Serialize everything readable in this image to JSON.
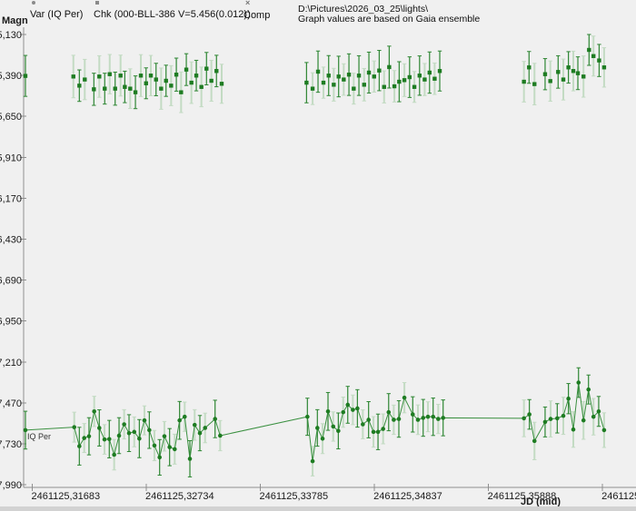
{
  "window": {
    "background": "#f0f0f0"
  },
  "colors": {
    "background": "#f0f0f0",
    "axis_gray": "#8f8f8f",
    "text": "#1a1a1a",
    "legend_marker_gray": "#8a8a8a",
    "marker_green": "#1e7c22",
    "errorbar_dark": "#2e8633",
    "errorbar_light": "#c3dbc3",
    "line_green": "#3a9040"
  },
  "legend": {
    "items": [
      {
        "marker": "dot",
        "label": "Var (IQ Per)"
      },
      {
        "marker": "square",
        "label": "Chk (000-BLL-386 V=5.456(0.012))"
      },
      {
        "marker": "x",
        "label": "Comp"
      }
    ]
  },
  "info": {
    "line1": "D:\\Pictures\\2026_03_25\\lights\\",
    "line2": "Graph values are based on Gaia ensemble"
  },
  "labels": {
    "y_axis": "Magn",
    "x_axis": "JD (mid)",
    "var_annotation": "IQ Per"
  },
  "chart_data": {
    "type": "scatter",
    "title": "",
    "xlabel": "JD (mid)",
    "ylabel": "Magn",
    "y_inverted": true,
    "grid": false,
    "legend_position": "top",
    "jd_base": 2461125,
    "x_ticks": [
      {
        "value_offset": 0.31683,
        "label": "2461125,31683"
      },
      {
        "value_offset": 0.32734,
        "label": "2461125,32734"
      },
      {
        "value_offset": 0.33785,
        "label": "2461125,33785"
      },
      {
        "value_offset": 0.34837,
        "label": "2461125,34837"
      },
      {
        "value_offset": 0.35888,
        "label": "2461125,35888"
      },
      {
        "value_offset": 0.36939,
        "label": "2461125,"
      }
    ],
    "y_ticks": [
      {
        "value": 5.13,
        "label": "5,130"
      },
      {
        "value": 5.39,
        "label": "5,390"
      },
      {
        "value": 5.65,
        "label": "5,650"
      },
      {
        "value": 5.91,
        "label": "5,910"
      },
      {
        "value": 6.17,
        "label": "6,170"
      },
      {
        "value": 6.43,
        "label": "6,430"
      },
      {
        "value": 6.69,
        "label": "6,690"
      },
      {
        "value": 6.95,
        "label": "6,950"
      },
      {
        "value": 7.21,
        "label": "7,210"
      },
      {
        "value": 7.47,
        "label": "7,470"
      },
      {
        "value": 7.73,
        "label": "7,730"
      },
      {
        "value": 7.99,
        "label": "7,990"
      }
    ],
    "series": [
      {
        "name": "Chk (000-BLL-386)",
        "marker": "square",
        "connected": false,
        "points": [
          [
            0.3162,
            5.393,
            0.13
          ],
          [
            0.32062,
            5.397,
            0.135
          ],
          [
            0.32117,
            5.455,
            0.1
          ],
          [
            0.32167,
            5.416,
            0.128
          ],
          [
            0.32251,
            5.478,
            0.102
          ],
          [
            0.32301,
            5.397,
            0.132
          ],
          [
            0.32351,
            5.474,
            0.098
          ],
          [
            0.32397,
            5.382,
            0.125
          ],
          [
            0.32447,
            5.474,
            0.105
          ],
          [
            0.32497,
            5.391,
            0.13
          ],
          [
            0.32536,
            5.463,
            0.1
          ],
          [
            0.32586,
            5.474,
            0.126
          ],
          [
            0.32634,
            5.497,
            0.104
          ],
          [
            0.32684,
            5.391,
            0.133
          ],
          [
            0.32732,
            5.44,
            0.098
          ],
          [
            0.32776,
            5.391,
            0.128
          ],
          [
            0.32824,
            5.416,
            0.103
          ],
          [
            0.32871,
            5.474,
            0.131
          ],
          [
            0.32916,
            5.424,
            0.099
          ],
          [
            0.32963,
            5.455,
            0.127
          ],
          [
            0.33011,
            5.385,
            0.105
          ],
          [
            0.33055,
            5.497,
            0.129
          ],
          [
            0.33103,
            5.353,
            0.101
          ],
          [
            0.3315,
            5.436,
            0.132
          ],
          [
            0.33195,
            5.391,
            0.097
          ],
          [
            0.33242,
            5.463,
            0.126
          ],
          [
            0.33289,
            5.347,
            0.103
          ],
          [
            0.33334,
            5.424,
            0.13
          ],
          [
            0.33381,
            5.362,
            0.1
          ],
          [
            0.33429,
            5.443,
            0.124
          ],
          [
            0.34211,
            5.436,
            0.128
          ],
          [
            0.34267,
            5.474,
            0.101
          ],
          [
            0.34317,
            5.366,
            0.131
          ],
          [
            0.34367,
            5.436,
            0.099
          ],
          [
            0.34415,
            5.391,
            0.127
          ],
          [
            0.34462,
            5.449,
            0.104
          ],
          [
            0.34507,
            5.397,
            0.129
          ],
          [
            0.34554,
            5.416,
            0.1
          ],
          [
            0.34602,
            5.385,
            0.132
          ],
          [
            0.34646,
            5.474,
            0.098
          ],
          [
            0.34694,
            5.391,
            0.126
          ],
          [
            0.34742,
            5.449,
            0.103
          ],
          [
            0.34786,
            5.372,
            0.13
          ],
          [
            0.34834,
            5.397,
            0.099
          ],
          [
            0.34881,
            5.359,
            0.128
          ],
          [
            0.34926,
            5.463,
            0.102
          ],
          [
            0.34973,
            5.337,
            0.133
          ],
          [
            0.35021,
            5.459,
            0.1
          ],
          [
            0.35065,
            5.43,
            0.127
          ],
          [
            0.35113,
            5.42,
            0.104
          ],
          [
            0.35161,
            5.401,
            0.129
          ],
          [
            0.35205,
            5.463,
            0.098
          ],
          [
            0.35253,
            5.391,
            0.125
          ],
          [
            0.353,
            5.416,
            0.102
          ],
          [
            0.35345,
            5.372,
            0.131
          ],
          [
            0.35392,
            5.411,
            0.1
          ],
          [
            0.35439,
            5.362,
            0.127
          ],
          [
            0.36215,
            5.43,
            0.129
          ],
          [
            0.36262,
            5.339,
            0.101
          ],
          [
            0.36312,
            5.445,
            0.132
          ],
          [
            0.3641,
            5.382,
            0.099
          ],
          [
            0.36458,
            5.426,
            0.128
          ],
          [
            0.3653,
            5.368,
            0.103
          ],
          [
            0.36578,
            5.416,
            0.13
          ],
          [
            0.36625,
            5.339,
            0.1
          ],
          [
            0.3667,
            5.362,
            0.126
          ],
          [
            0.36712,
            5.376,
            0.104
          ],
          [
            0.36764,
            5.397,
            0.131
          ],
          [
            0.36815,
            5.228,
            0.098
          ],
          [
            0.36856,
            5.267,
            0.127
          ],
          [
            0.36908,
            5.295,
            0.102
          ],
          [
            0.36954,
            5.339,
            0.125
          ]
        ]
      },
      {
        "name": "Var (IQ Per)",
        "marker": "circle",
        "connected": true,
        "points": [
          [
            0.3162,
            7.643,
            0.12
          ],
          [
            0.3207,
            7.624,
            0.095
          ],
          [
            0.32117,
            7.745,
            0.12
          ],
          [
            0.32162,
            7.693,
            0.092
          ],
          [
            0.32206,
            7.682,
            0.118
          ],
          [
            0.32254,
            7.524,
            0.096
          ],
          [
            0.32301,
            7.629,
            0.115
          ],
          [
            0.32349,
            7.702,
            0.094
          ],
          [
            0.32393,
            7.7,
            0.119
          ],
          [
            0.32438,
            7.799,
            0.097
          ],
          [
            0.32483,
            7.678,
            0.114
          ],
          [
            0.3253,
            7.606,
            0.093
          ],
          [
            0.32575,
            7.662,
            0.117
          ],
          [
            0.32623,
            7.654,
            0.095
          ],
          [
            0.3267,
            7.697,
            0.121
          ],
          [
            0.32717,
            7.581,
            0.092
          ],
          [
            0.32762,
            7.643,
            0.116
          ],
          [
            0.32809,
            7.741,
            0.096
          ],
          [
            0.32857,
            7.816,
            0.113
          ],
          [
            0.32901,
            7.682,
            0.094
          ],
          [
            0.32949,
            7.751,
            0.118
          ],
          [
            0.32996,
            7.764,
            0.095
          ],
          [
            0.33041,
            7.581,
            0.12
          ],
          [
            0.33088,
            7.558,
            0.093
          ],
          [
            0.33136,
            7.825,
            0.115
          ],
          [
            0.3318,
            7.61,
            0.097
          ],
          [
            0.33228,
            7.662,
            0.112
          ],
          [
            0.33276,
            7.629,
            0.094
          ],
          [
            0.33368,
            7.572,
            0.119
          ],
          [
            0.33415,
            7.678,
            0.096
          ],
          [
            0.34219,
            7.558,
            0.118
          ],
          [
            0.34267,
            7.84,
            0.094
          ],
          [
            0.34311,
            7.629,
            0.116
          ],
          [
            0.34359,
            7.697,
            0.095
          ],
          [
            0.34409,
            7.524,
            0.12
          ],
          [
            0.34457,
            7.62,
            0.093
          ],
          [
            0.34504,
            7.648,
            0.114
          ],
          [
            0.34549,
            7.529,
            0.096
          ],
          [
            0.34591,
            7.482,
            0.117
          ],
          [
            0.34638,
            7.514,
            0.094
          ],
          [
            0.3468,
            7.505,
            0.119
          ],
          [
            0.3473,
            7.606,
            0.092
          ],
          [
            0.34783,
            7.577,
            0.115
          ],
          [
            0.34828,
            7.654,
            0.097
          ],
          [
            0.3487,
            7.654,
            0.113
          ],
          [
            0.34917,
            7.635,
            0.095
          ],
          [
            0.34968,
            7.529,
            0.118
          ],
          [
            0.35015,
            7.577,
            0.093
          ],
          [
            0.35062,
            7.572,
            0.116
          ],
          [
            0.35113,
            7.437,
            0.096
          ],
          [
            0.3519,
            7.543,
            0.112
          ],
          [
            0.35238,
            7.577,
            0.094
          ],
          [
            0.35286,
            7.565,
            0.117
          ],
          [
            0.3533,
            7.558,
            0.095
          ],
          [
            0.35378,
            7.558,
            0.119
          ],
          [
            0.35425,
            7.572,
            0.093
          ],
          [
            0.3547,
            7.565,
            0.114
          ],
          [
            0.36215,
            7.568,
            0.117
          ],
          [
            0.36265,
            7.543,
            0.094
          ],
          [
            0.36312,
            7.712,
            0.119
          ],
          [
            0.3641,
            7.591,
            0.095
          ],
          [
            0.36461,
            7.572,
            0.115
          ],
          [
            0.36522,
            7.568,
            0.093
          ],
          [
            0.36578,
            7.552,
            0.118
          ],
          [
            0.36625,
            7.443,
            0.096
          ],
          [
            0.3667,
            7.639,
            0.113
          ],
          [
            0.36718,
            7.341,
            0.094
          ],
          [
            0.36764,
            7.581,
            0.12
          ],
          [
            0.3681,
            7.385,
            0.092
          ],
          [
            0.36856,
            7.558,
            0.116
          ],
          [
            0.36904,
            7.524,
            0.095
          ],
          [
            0.36954,
            7.643,
            0.11
          ]
        ]
      }
    ]
  }
}
